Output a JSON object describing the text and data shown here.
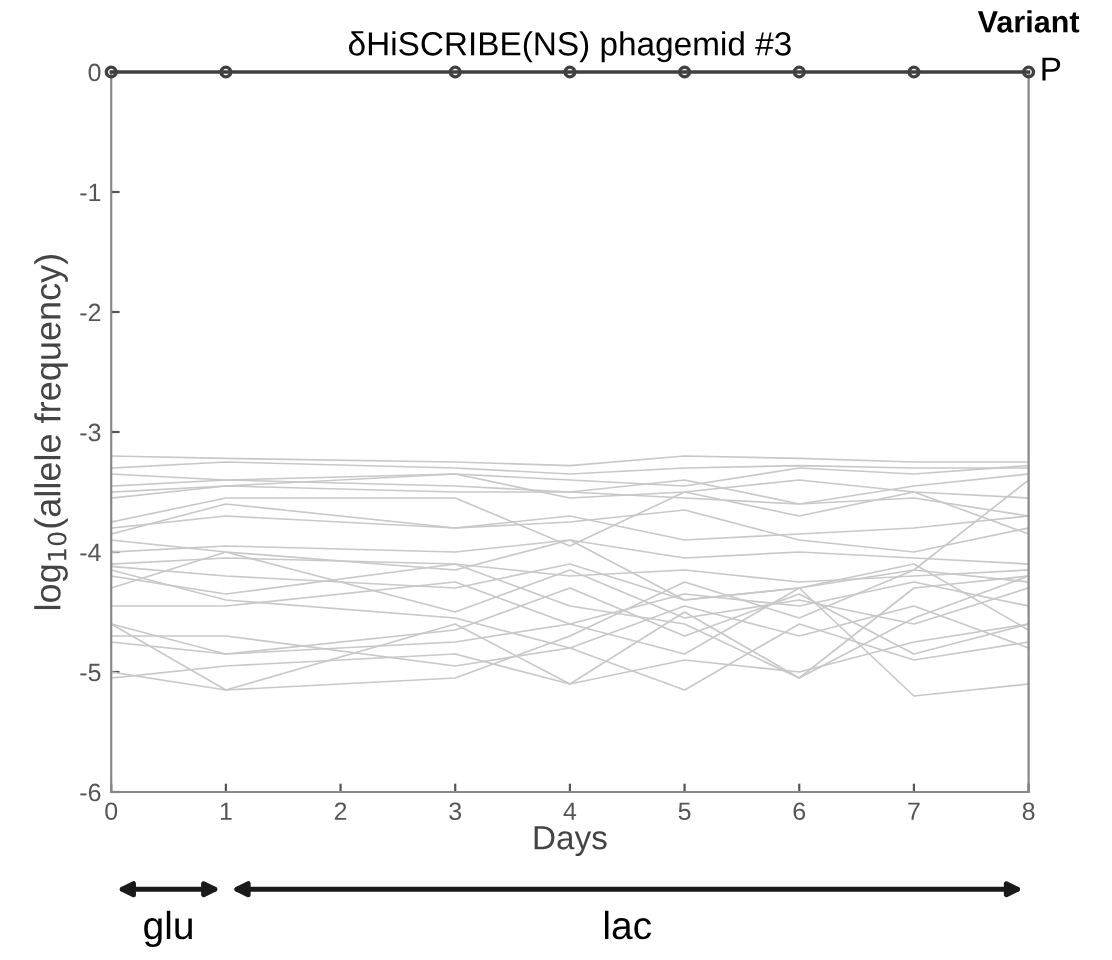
{
  "chart_data": {
    "type": "line",
    "title": "δHiSCRIBE(NS) phagemid #3",
    "xlabel": "Days",
    "ylabel": "log$_{10}$(allele frequency)",
    "legend_title": "Variant",
    "xlim": [
      0,
      8
    ],
    "ylim": [
      -6,
      0
    ],
    "xticks": [
      0,
      1,
      2,
      3,
      4,
      5,
      6,
      7,
      8
    ],
    "yticks": [
      -6,
      -5,
      -4,
      -3,
      -2,
      -1,
      0
    ],
    "grid": false,
    "annotations": [
      "glu",
      "lac"
    ],
    "x": [
      0,
      1,
      3,
      4,
      5,
      6,
      7,
      8
    ],
    "series": [
      {
        "name": "P",
        "color": "#404040",
        "marker": "circle",
        "values": [
          0,
          0,
          0,
          0,
          0,
          0,
          0,
          0
        ]
      },
      {
        "color": "#c8c8c8",
        "values": [
          -3.2,
          -3.22,
          -3.25,
          -3.28,
          -3.2,
          -3.22,
          -3.25,
          -3.25
        ]
      },
      {
        "color": "#c8c8c8",
        "values": [
          -3.3,
          -3.25,
          -3.3,
          -3.35,
          -3.3,
          -3.28,
          -3.3,
          -3.3
        ]
      },
      {
        "color": "#c8c8c8",
        "values": [
          -3.35,
          -3.4,
          -3.35,
          -3.4,
          -3.45,
          -3.3,
          -3.35,
          -3.28
        ]
      },
      {
        "color": "#c8c8c8",
        "values": [
          -3.45,
          -3.4,
          -3.45,
          -3.5,
          -3.4,
          -3.6,
          -3.45,
          -3.35
        ]
      },
      {
        "color": "#c8c8c8",
        "values": [
          -3.55,
          -3.45,
          -3.35,
          -3.55,
          -3.5,
          -3.4,
          -3.5,
          -3.55
        ]
      },
      {
        "color": "#c8c8c8",
        "values": [
          -3.75,
          -3.55,
          -3.55,
          -3.95,
          -3.5,
          -3.7,
          -3.5,
          -3.85
        ]
      },
      {
        "color": "#c8c8c8",
        "values": [
          -3.8,
          -3.7,
          -3.8,
          -3.7,
          -3.9,
          -3.85,
          -3.8,
          -3.7
        ]
      },
      {
        "color": "#c8c8c8",
        "values": [
          -3.85,
          -3.6,
          -3.8,
          -3.75,
          -3.65,
          -3.9,
          -4.0,
          -3.8
        ]
      },
      {
        "color": "#c8c8c8",
        "values": [
          -4.0,
          -3.95,
          -4.0,
          -3.9,
          -4.05,
          -4.0,
          -4.05,
          -4.1
        ]
      },
      {
        "color": "#c8c8c8",
        "values": [
          -4.1,
          -4.05,
          -4.1,
          -4.2,
          -4.15,
          -4.25,
          -4.2,
          -4.15
        ]
      },
      {
        "color": "#c8c8c8",
        "values": [
          -4.12,
          -4.2,
          -4.3,
          -4.1,
          -4.4,
          -4.3,
          -4.15,
          -4.25
        ]
      },
      {
        "color": "#c8c8c8",
        "values": [
          -4.2,
          -4.35,
          -4.1,
          -4.45,
          -4.6,
          -5.05,
          -4.3,
          -4.2
        ]
      },
      {
        "color": "#c8c8c8",
        "values": [
          -4.3,
          -4.0,
          -4.5,
          -4.15,
          -4.55,
          -4.4,
          -4.6,
          -4.3
        ]
      },
      {
        "color": "#c8c8c8",
        "values": [
          -4.45,
          -4.45,
          -4.25,
          -4.6,
          -4.35,
          -4.45,
          -4.25,
          -4.45
        ]
      },
      {
        "color": "#c8c8c8",
        "values": [
          -4.6,
          -4.85,
          -4.65,
          -4.3,
          -4.7,
          -4.35,
          -4.85,
          -4.6
        ]
      },
      {
        "color": "#c8c8c8",
        "values": [
          -4.6,
          -5.15,
          -4.6,
          -5.1,
          -4.5,
          -5.05,
          -4.55,
          -4.2
        ]
      },
      {
        "color": "#c8c8c8",
        "values": [
          -4.7,
          -4.7,
          -4.95,
          -4.8,
          -5.15,
          -4.6,
          -4.9,
          -4.75
        ]
      },
      {
        "color": "#c8c8c8",
        "values": [
          -4.75,
          -4.85,
          -4.75,
          -4.6,
          -4.85,
          -4.3,
          -5.2,
          -5.1
        ]
      },
      {
        "color": "#c8c8c8",
        "values": [
          -5.05,
          -4.95,
          -4.85,
          -5.1,
          -4.9,
          -5.0,
          -4.75,
          -4.6
        ]
      },
      {
        "color": "#c8c8c8",
        "values": [
          -5.0,
          -5.15,
          -5.05,
          -4.7,
          -4.25,
          -4.55,
          -4.15,
          -3.4
        ]
      },
      {
        "color": "#c8c8c8",
        "values": [
          -4.15,
          -4.4,
          -4.55,
          -4.8,
          -4.45,
          -4.7,
          -4.45,
          -4.8
        ]
      },
      {
        "color": "#c8c8c8",
        "values": [
          -3.9,
          -4.0,
          -4.15,
          -3.9,
          -4.4,
          -4.3,
          -4.1,
          -4.65
        ]
      },
      {
        "color": "#c8c8c8",
        "values": [
          -3.5,
          -3.45,
          -3.5,
          -3.5,
          -3.55,
          -3.6,
          -3.55,
          -3.7
        ]
      }
    ]
  }
}
